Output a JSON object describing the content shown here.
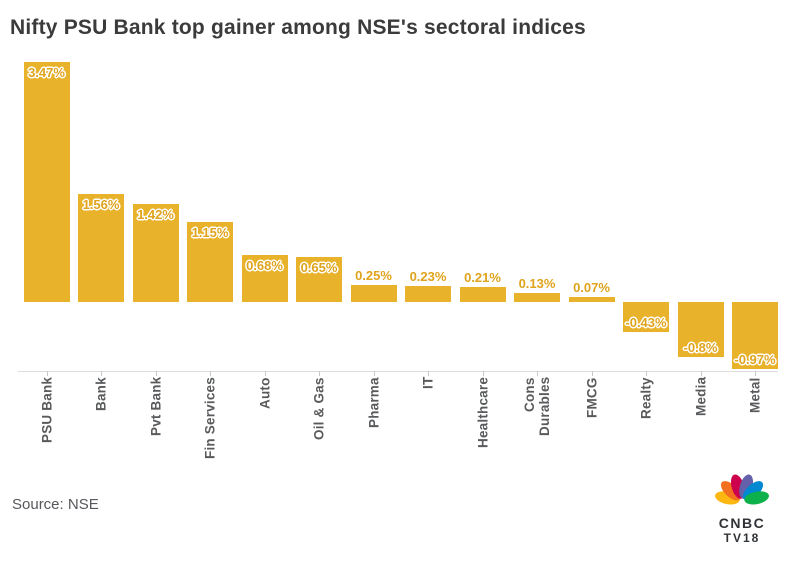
{
  "title": "Nifty PSU Bank top gainer among NSE's sectoral indices",
  "source": "Source: NSE",
  "logo": {
    "line1": "CNBC",
    "line2": "TV18",
    "feather_colors": [
      "#FCB711",
      "#F37021",
      "#CC004C",
      "#6460AA",
      "#0089D0",
      "#0DB14B"
    ]
  },
  "chart_data": {
    "type": "bar",
    "title": "Nifty PSU Bank top gainer among NSE's sectoral indices",
    "categories": [
      "PSU Bank",
      "Bank",
      "Pvt Bank",
      "Fin Services",
      "Auto",
      "Oil & Gas",
      "Pharma",
      "IT",
      "Healthcare",
      "Cons\nDurables",
      "FMCG",
      "Realty",
      "Media",
      "Metal"
    ],
    "values": [
      3.47,
      1.56,
      1.42,
      1.15,
      0.68,
      0.65,
      0.25,
      0.23,
      0.21,
      0.13,
      0.07,
      -0.43,
      -0.8,
      -0.97
    ],
    "labels": [
      "3.47%",
      "1.56%",
      "1.42%",
      "1.15%",
      "0.68%",
      "0.65%",
      "0.25%",
      "0.23%",
      "0.21%",
      "0.13%",
      "0.07%",
      "-0.43%",
      "-0.8%",
      "-0.97%"
    ],
    "xlabel": "",
    "ylabel": "",
    "ylim": [
      -1.05,
      3.6
    ],
    "grid": false,
    "legend": false,
    "bar_color": "#E9B22B",
    "value_label_color": "#DFA31C",
    "axis_line_color": "#DDDDDD",
    "category_label_color": "#595A5C"
  }
}
